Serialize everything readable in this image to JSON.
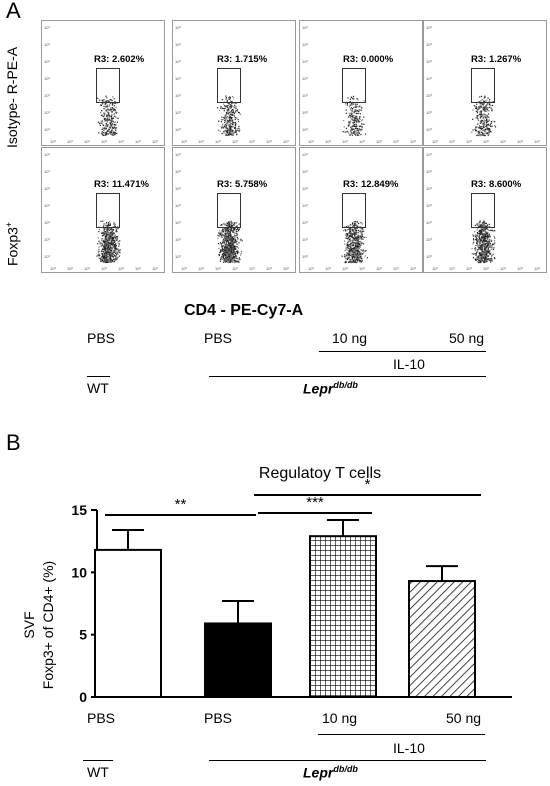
{
  "panel_a": {
    "letter": "A",
    "row_labels": [
      "Isotype- R-PE-A",
      "Foxp3"
    ],
    "row_label_sup": [
      "",
      "+"
    ],
    "gates": [
      [
        "R3: 2.602%",
        "R3: 1.715%",
        "R3: 0.000%",
        "R3: 1.267%"
      ],
      [
        "R3: 11.471%",
        "R3: 5.758%",
        "R3: 12.849%",
        "R3: 8.600%"
      ]
    ],
    "x_axis_title": "CD4 - PE-Cy7-A",
    "conditions": [
      "PBS",
      "PBS",
      "10 ng",
      "50 ng"
    ],
    "treatment_label": "IL-10",
    "wt_label": "WT",
    "lepr_label": "Lepr",
    "lepr_sup": "db/db"
  },
  "panel_b": {
    "letter": "B",
    "conditions": [
      "PBS",
      "PBS",
      "10 ng",
      "50 ng"
    ],
    "treatment_label": "IL-10",
    "wt_label": "WT",
    "lepr_label": "Lepr",
    "lepr_sup": "db/db"
  },
  "chart_data": {
    "type": "bar",
    "title": "Regulatoy T cells",
    "ylabel_line1": "SVF",
    "ylabel_line2": "Foxp3+ of CD4+ (%)",
    "categories": [
      "PBS",
      "PBS",
      "10 ng",
      "50 ng"
    ],
    "values": [
      11.8,
      5.9,
      12.9,
      9.3
    ],
    "errors": [
      1.6,
      1.8,
      1.3,
      1.2
    ],
    "fills": [
      "white",
      "black",
      "grid",
      "hatch"
    ],
    "ylim": [
      0,
      15
    ],
    "yticks": [
      0,
      5,
      10,
      15
    ],
    "significance": [
      {
        "from": 0,
        "to": 1,
        "label": "**"
      },
      {
        "from": 1,
        "to": 2,
        "label": "***"
      },
      {
        "from": 1,
        "to": 3,
        "label": "*"
      }
    ]
  }
}
